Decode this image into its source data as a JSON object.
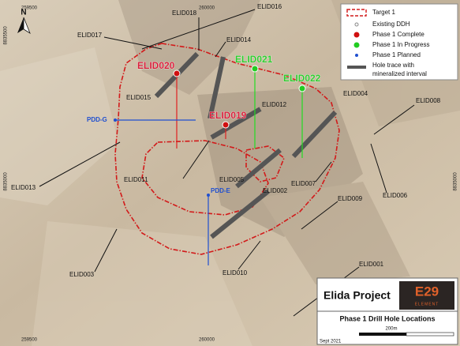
{
  "north": "N",
  "grid_labels": {
    "top": [
      "259500",
      "260000"
    ],
    "bottom": [
      "259500",
      "260000"
    ],
    "left": [
      "8835500",
      "8835000"
    ],
    "right": [
      "8835500",
      "8835000"
    ]
  },
  "holes": [
    "ELID016",
    "ELID018",
    "ELID017",
    "ELID014",
    "ELID020",
    "ELID021",
    "ELID022",
    "ELID015",
    "ELID012",
    "ELID019",
    "ELID004",
    "ELID008",
    "PDD-G",
    "ELID011",
    "ELID005",
    "ELID002",
    "PDD-E",
    "ELID007",
    "ELID006",
    "ELID013",
    "ELID009",
    "ELID003",
    "ELID010",
    "ELID001"
  ],
  "legend": [
    "Target 1",
    "Existing DDH",
    "Phase 1 Complete",
    "Phase 1 In Progress",
    "Phase 1 Planned",
    "Hole trace with",
    "mineralized interval"
  ],
  "title_block": {
    "project": "Elida Project",
    "logo": "E29",
    "logo_sub": "ELEMENT",
    "map_title": "Phase 1 Drill Hole Locations",
    "scale": "200m",
    "date": "Sept 2021"
  }
}
